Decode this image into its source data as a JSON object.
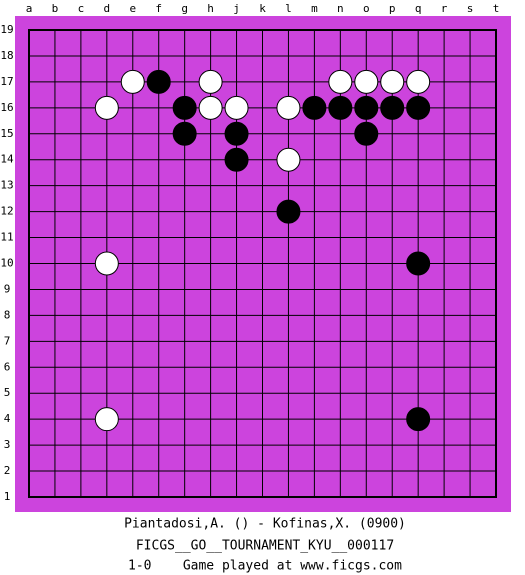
{
  "board": {
    "columns": [
      "a",
      "b",
      "c",
      "d",
      "e",
      "f",
      "g",
      "h",
      "j",
      "k",
      "l",
      "m",
      "n",
      "o",
      "p",
      "q",
      "r",
      "s",
      "t"
    ],
    "rows": [
      19,
      18,
      17,
      16,
      15,
      14,
      13,
      12,
      11,
      10,
      9,
      8,
      7,
      6,
      5,
      4,
      3,
      2,
      1
    ]
  },
  "stones": [
    {
      "col": "e",
      "row": 17,
      "color": "white"
    },
    {
      "col": "f",
      "row": 17,
      "color": "black"
    },
    {
      "col": "h",
      "row": 17,
      "color": "white"
    },
    {
      "col": "n",
      "row": 17,
      "color": "white"
    },
    {
      "col": "o",
      "row": 17,
      "color": "white"
    },
    {
      "col": "p",
      "row": 17,
      "color": "white"
    },
    {
      "col": "q",
      "row": 17,
      "color": "white"
    },
    {
      "col": "d",
      "row": 16,
      "color": "white"
    },
    {
      "col": "g",
      "row": 16,
      "color": "black"
    },
    {
      "col": "h",
      "row": 16,
      "color": "white"
    },
    {
      "col": "j",
      "row": 16,
      "color": "white"
    },
    {
      "col": "l",
      "row": 16,
      "color": "white"
    },
    {
      "col": "m",
      "row": 16,
      "color": "black"
    },
    {
      "col": "n",
      "row": 16,
      "color": "black"
    },
    {
      "col": "o",
      "row": 16,
      "color": "black"
    },
    {
      "col": "p",
      "row": 16,
      "color": "black"
    },
    {
      "col": "q",
      "row": 16,
      "color": "black"
    },
    {
      "col": "g",
      "row": 15,
      "color": "black"
    },
    {
      "col": "j",
      "row": 15,
      "color": "black"
    },
    {
      "col": "o",
      "row": 15,
      "color": "black"
    },
    {
      "col": "j",
      "row": 14,
      "color": "black"
    },
    {
      "col": "l",
      "row": 14,
      "color": "white"
    },
    {
      "col": "l",
      "row": 12,
      "color": "black"
    },
    {
      "col": "d",
      "row": 10,
      "color": "white"
    },
    {
      "col": "q",
      "row": 10,
      "color": "black"
    },
    {
      "col": "d",
      "row": 4,
      "color": "white"
    },
    {
      "col": "q",
      "row": 4,
      "color": "black"
    }
  ],
  "footer": [
    "Piantadosi,A. () - Kofinas,X. (0900)",
    "FICGS__GO__TOURNAMENT_KYU__000117",
    "1-0    Game played at www.ficgs.com"
  ]
}
